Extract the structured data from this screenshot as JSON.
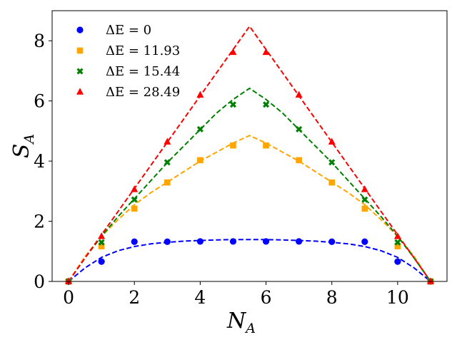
{
  "chart_data": {
    "type": "scatter",
    "xlabel": "N",
    "xlabel_sub": "A",
    "ylabel": "S",
    "ylabel_sub": "A",
    "xlim": [
      -0.5,
      11.5
    ],
    "ylim": [
      0,
      9.0
    ],
    "xticks": [
      0,
      2,
      4,
      6,
      8,
      10
    ],
    "yticks": [
      0,
      2,
      4,
      6,
      8
    ],
    "grid": false,
    "legend_position": "top-left",
    "series": [
      {
        "name": "ΔE = 0",
        "color": "#0000ff",
        "marker": "circle",
        "x": [
          0,
          1,
          2,
          3,
          4,
          5,
          6,
          7,
          8,
          9,
          10,
          11
        ],
        "y": [
          0,
          0.66,
          1.32,
          1.32,
          1.33,
          1.33,
          1.33,
          1.33,
          1.32,
          1.32,
          0.66,
          0
        ],
        "fit_x": [
          0,
          0.5,
          1,
          1.5,
          2,
          2.5,
          3,
          3.5,
          4,
          4.5,
          5,
          5.5,
          6,
          6.5,
          7,
          7.5,
          8,
          8.5,
          9,
          9.5,
          10,
          10.5,
          11
        ],
        "fit_y": [
          0,
          0.45,
          0.8,
          1.02,
          1.16,
          1.25,
          1.3,
          1.34,
          1.36,
          1.38,
          1.39,
          1.39,
          1.39,
          1.38,
          1.36,
          1.34,
          1.3,
          1.25,
          1.16,
          1.02,
          0.8,
          0.45,
          0
        ]
      },
      {
        "name": "ΔE = 11.93",
        "color": "#ffa500",
        "marker": "square",
        "x": [
          0,
          1,
          2,
          3,
          4,
          5,
          6,
          7,
          8,
          9,
          10,
          11
        ],
        "y": [
          0,
          1.17,
          2.42,
          3.29,
          4.03,
          4.52,
          4.52,
          4.03,
          3.29,
          2.42,
          1.17,
          0
        ],
        "fit_x": [
          0,
          0.5,
          1,
          1.5,
          2,
          2.5,
          3,
          3.5,
          4,
          4.5,
          5,
          5.5,
          6,
          6.5,
          7,
          7.5,
          8,
          8.5,
          9,
          9.5,
          10,
          10.5,
          11
        ],
        "fit_y": [
          0,
          0.83,
          1.5,
          2.05,
          2.55,
          2.95,
          3.3,
          3.65,
          4.0,
          4.3,
          4.6,
          4.85,
          4.6,
          4.3,
          4.0,
          3.65,
          3.3,
          2.95,
          2.55,
          2.05,
          1.5,
          0.83,
          0
        ]
      },
      {
        "name": "ΔE = 15.44",
        "color": "#008000",
        "marker": "x",
        "x": [
          0,
          1,
          2,
          3,
          4,
          5,
          6,
          7,
          8,
          9,
          10,
          11
        ],
        "y": [
          0,
          1.3,
          2.72,
          3.96,
          5.06,
          5.88,
          5.88,
          5.06,
          3.96,
          2.72,
          1.3,
          0
        ],
        "fit_x": [
          0,
          0.5,
          1,
          1.5,
          2,
          2.5,
          3,
          3.5,
          4,
          4.5,
          5,
          5.5,
          6,
          6.5,
          7,
          7.5,
          8,
          8.5,
          9,
          9.5,
          10,
          10.5,
          11
        ],
        "fit_y": [
          0,
          0.78,
          1.5,
          2.15,
          2.75,
          3.35,
          3.95,
          4.5,
          5.05,
          5.6,
          6.05,
          6.42,
          6.05,
          5.6,
          5.05,
          4.5,
          3.95,
          3.35,
          2.75,
          2.15,
          1.5,
          0.78,
          0
        ]
      },
      {
        "name": "ΔE = 28.49",
        "color": "#ff0000",
        "marker": "triangle",
        "x": [
          0,
          1,
          2,
          3,
          4,
          5,
          6,
          7,
          8,
          9,
          10,
          11
        ],
        "y": [
          0,
          1.5,
          3.06,
          4.64,
          6.2,
          7.62,
          7.62,
          6.2,
          4.64,
          3.06,
          1.5,
          0
        ],
        "fit_x": [
          0,
          0.5,
          1,
          1.5,
          2,
          2.5,
          3,
          3.5,
          4,
          4.5,
          5,
          5.5,
          6,
          6.5,
          7,
          7.5,
          8,
          8.5,
          9,
          9.5,
          10,
          10.5,
          11
        ],
        "fit_y": [
          0,
          0.78,
          1.55,
          2.32,
          3.09,
          3.86,
          4.63,
          5.4,
          6.17,
          6.94,
          7.71,
          8.48,
          7.71,
          6.94,
          6.17,
          5.4,
          4.63,
          3.86,
          3.09,
          2.32,
          1.55,
          0.78,
          0
        ]
      }
    ]
  }
}
